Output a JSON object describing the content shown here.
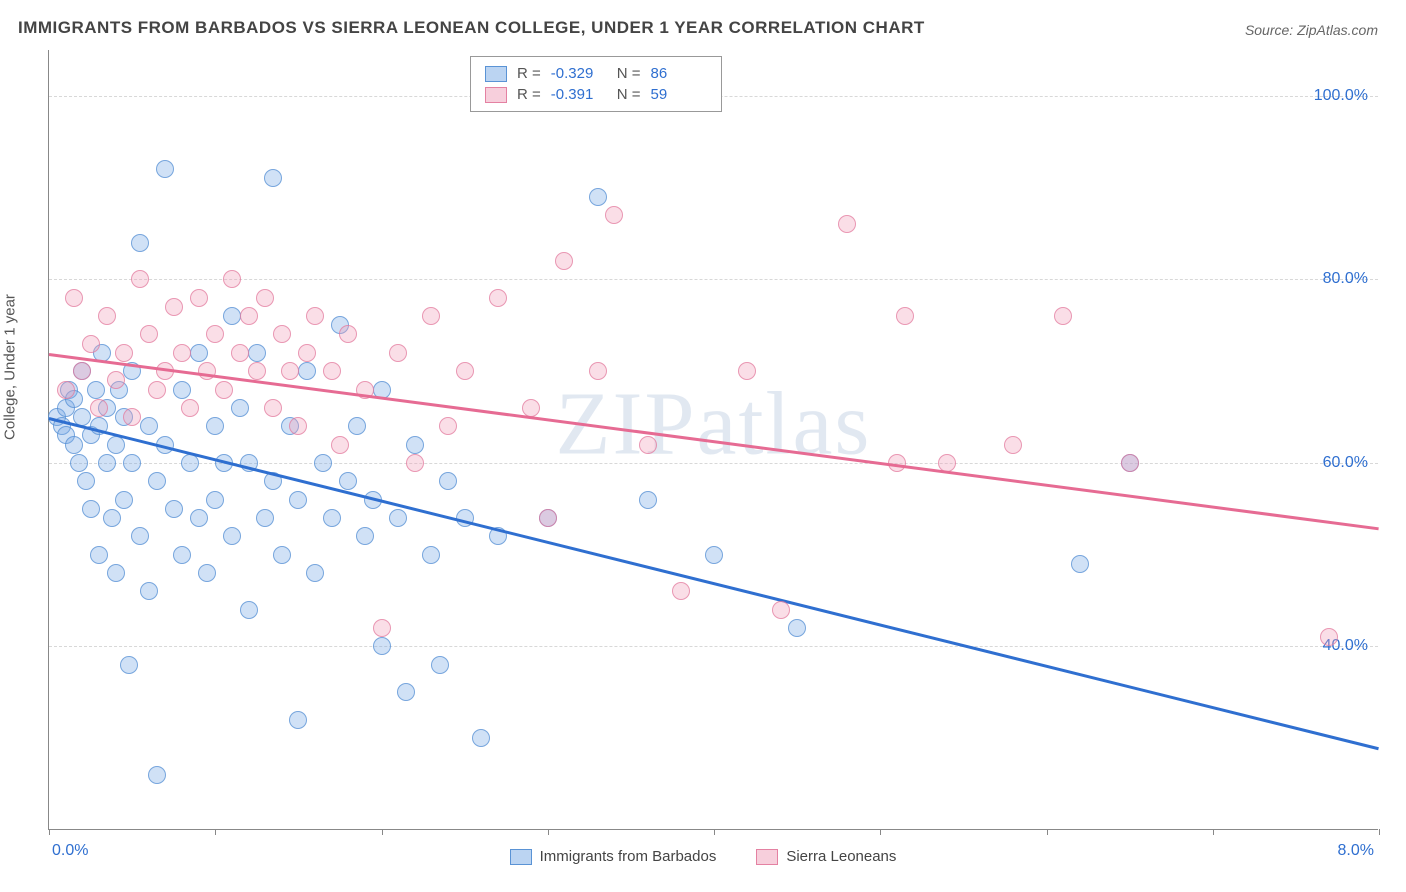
{
  "title": "IMMIGRANTS FROM BARBADOS VS SIERRA LEONEAN COLLEGE, UNDER 1 YEAR CORRELATION CHART",
  "source": "Source: ZipAtlas.com",
  "watermark": "ZIPatlas",
  "y_axis_title": "College, Under 1 year",
  "chart": {
    "type": "scatter",
    "xlim": [
      0,
      8
    ],
    "ylim": [
      20,
      105
    ],
    "x_ticks": [
      0,
      1,
      2,
      3,
      4,
      5,
      6,
      7,
      8
    ],
    "x_tick_labels_shown": {
      "0": "0.0%",
      "8": "8.0%"
    },
    "y_gridlines": [
      40,
      60,
      80,
      100
    ],
    "y_tick_labels": [
      "40.0%",
      "60.0%",
      "80.0%",
      "100.0%"
    ],
    "background_color": "#ffffff",
    "grid_color": "#d8d8d8",
    "axis_color": "#888888"
  },
  "series": [
    {
      "name": "Immigrants from Barbados",
      "legend_label": "Immigrants from Barbados",
      "color_fill": "rgba(120,170,230,0.35)",
      "color_stroke": "rgba(80,140,210,0.7)",
      "trend_color": "#2f6fd0",
      "marker_radius_px": 9,
      "R": "-0.329",
      "N": "86",
      "trend": {
        "x1": 0,
        "y1": 65,
        "x2": 8,
        "y2": 29
      },
      "points": [
        [
          0.05,
          65
        ],
        [
          0.08,
          64
        ],
        [
          0.1,
          66
        ],
        [
          0.1,
          63
        ],
        [
          0.12,
          68
        ],
        [
          0.15,
          62
        ],
        [
          0.15,
          67
        ],
        [
          0.18,
          60
        ],
        [
          0.2,
          65
        ],
        [
          0.2,
          70
        ],
        [
          0.22,
          58
        ],
        [
          0.25,
          63
        ],
        [
          0.25,
          55
        ],
        [
          0.28,
          68
        ],
        [
          0.3,
          64
        ],
        [
          0.3,
          50
        ],
        [
          0.32,
          72
        ],
        [
          0.35,
          60
        ],
        [
          0.35,
          66
        ],
        [
          0.38,
          54
        ],
        [
          0.4,
          62
        ],
        [
          0.4,
          48
        ],
        [
          0.42,
          68
        ],
        [
          0.45,
          56
        ],
        [
          0.45,
          65
        ],
        [
          0.48,
          38
        ],
        [
          0.5,
          60
        ],
        [
          0.5,
          70
        ],
        [
          0.55,
          52
        ],
        [
          0.55,
          84
        ],
        [
          0.6,
          64
        ],
        [
          0.6,
          46
        ],
        [
          0.65,
          58
        ],
        [
          0.65,
          26
        ],
        [
          0.7,
          62
        ],
        [
          0.7,
          92
        ],
        [
          0.75,
          55
        ],
        [
          0.8,
          68
        ],
        [
          0.8,
          50
        ],
        [
          0.85,
          60
        ],
        [
          0.9,
          54
        ],
        [
          0.9,
          72
        ],
        [
          0.95,
          48
        ],
        [
          1.0,
          64
        ],
        [
          1.0,
          56
        ],
        [
          1.05,
          60
        ],
        [
          1.1,
          76
        ],
        [
          1.1,
          52
        ],
        [
          1.15,
          66
        ],
        [
          1.2,
          44
        ],
        [
          1.2,
          60
        ],
        [
          1.25,
          72
        ],
        [
          1.3,
          54
        ],
        [
          1.35,
          91
        ],
        [
          1.35,
          58
        ],
        [
          1.4,
          50
        ],
        [
          1.45,
          64
        ],
        [
          1.5,
          56
        ],
        [
          1.5,
          32
        ],
        [
          1.55,
          70
        ],
        [
          1.6,
          48
        ],
        [
          1.65,
          60
        ],
        [
          1.7,
          54
        ],
        [
          1.75,
          75
        ],
        [
          1.8,
          58
        ],
        [
          1.85,
          64
        ],
        [
          1.9,
          52
        ],
        [
          1.95,
          56
        ],
        [
          2.0,
          68
        ],
        [
          2.0,
          40
        ],
        [
          2.1,
          54
        ],
        [
          2.15,
          35
        ],
        [
          2.2,
          62
        ],
        [
          2.3,
          50
        ],
        [
          2.35,
          38
        ],
        [
          2.4,
          58
        ],
        [
          2.5,
          54
        ],
        [
          2.6,
          30
        ],
        [
          2.7,
          52
        ],
        [
          3.0,
          54
        ],
        [
          3.3,
          89
        ],
        [
          3.6,
          56
        ],
        [
          4.0,
          50
        ],
        [
          4.5,
          42
        ],
        [
          6.2,
          49
        ],
        [
          6.5,
          60
        ]
      ]
    },
    {
      "name": "Sierra Leoneans",
      "legend_label": "Sierra Leoneans",
      "color_fill": "rgba(240,160,185,0.35)",
      "color_stroke": "rgba(225,120,155,0.7)",
      "trend_color": "#e66b93",
      "marker_radius_px": 9,
      "R": "-0.391",
      "N": "59",
      "trend": {
        "x1": 0,
        "y1": 72,
        "x2": 8,
        "y2": 53
      },
      "points": [
        [
          0.1,
          68
        ],
        [
          0.15,
          78
        ],
        [
          0.2,
          70
        ],
        [
          0.25,
          73
        ],
        [
          0.3,
          66
        ],
        [
          0.35,
          76
        ],
        [
          0.4,
          69
        ],
        [
          0.45,
          72
        ],
        [
          0.5,
          65
        ],
        [
          0.55,
          80
        ],
        [
          0.6,
          74
        ],
        [
          0.65,
          68
        ],
        [
          0.7,
          70
        ],
        [
          0.75,
          77
        ],
        [
          0.8,
          72
        ],
        [
          0.85,
          66
        ],
        [
          0.9,
          78
        ],
        [
          0.95,
          70
        ],
        [
          1.0,
          74
        ],
        [
          1.05,
          68
        ],
        [
          1.1,
          80
        ],
        [
          1.15,
          72
        ],
        [
          1.2,
          76
        ],
        [
          1.25,
          70
        ],
        [
          1.3,
          78
        ],
        [
          1.35,
          66
        ],
        [
          1.4,
          74
        ],
        [
          1.45,
          70
        ],
        [
          1.5,
          64
        ],
        [
          1.55,
          72
        ],
        [
          1.6,
          76
        ],
        [
          1.7,
          70
        ],
        [
          1.75,
          62
        ],
        [
          1.8,
          74
        ],
        [
          1.9,
          68
        ],
        [
          2.0,
          42
        ],
        [
          2.1,
          72
        ],
        [
          2.2,
          60
        ],
        [
          2.3,
          76
        ],
        [
          2.4,
          64
        ],
        [
          2.5,
          70
        ],
        [
          2.7,
          78
        ],
        [
          2.9,
          66
        ],
        [
          3.0,
          54
        ],
        [
          3.1,
          82
        ],
        [
          3.3,
          70
        ],
        [
          3.6,
          62
        ],
        [
          3.8,
          46
        ],
        [
          4.2,
          70
        ],
        [
          4.4,
          44
        ],
        [
          4.8,
          86
        ],
        [
          5.1,
          60
        ],
        [
          5.15,
          76
        ],
        [
          5.4,
          60
        ],
        [
          5.8,
          62
        ],
        [
          6.1,
          76
        ],
        [
          6.5,
          60
        ],
        [
          7.7,
          41
        ],
        [
          3.4,
          87
        ]
      ]
    }
  ],
  "rn_legend": {
    "rows": [
      {
        "swatch": "blue",
        "R_label": "R =",
        "R": "-0.329",
        "N_label": "N =",
        "N": "86"
      },
      {
        "swatch": "pink",
        "R_label": "R =",
        "R": "-0.391",
        "N_label": "N =",
        "N": "59"
      }
    ]
  },
  "bottom_legend": [
    {
      "swatch": "blue",
      "label": "Immigrants from Barbados"
    },
    {
      "swatch": "pink",
      "label": "Sierra Leoneans"
    }
  ]
}
